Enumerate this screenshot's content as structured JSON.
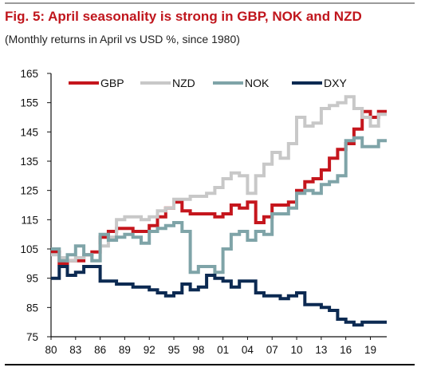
{
  "header": {
    "title": "Fig. 5: April seasonality is strong in GBP, NOK and NZD",
    "subtitle": "(Monthly returns in April vs USD %, since 1980)"
  },
  "chart_data": {
    "type": "line",
    "title": "Fig. 5: April seasonality is strong in GBP, NOK and NZD",
    "subtitle": "(Monthly returns in April vs USD %, since 1980)",
    "xlabel": "",
    "ylabel": "",
    "xlim": [
      1980,
      2021
    ],
    "ylim": [
      75,
      165
    ],
    "x_tick_values": [
      1980,
      1983,
      1986,
      1989,
      1992,
      1995,
      1998,
      2001,
      2004,
      2007,
      2010,
      2013,
      2016,
      2019
    ],
    "x_tick_labels": [
      "80",
      "83",
      "86",
      "89",
      "92",
      "95",
      "98",
      "01",
      "04",
      "07",
      "10",
      "13",
      "16",
      "19"
    ],
    "y_ticks": [
      75,
      85,
      95,
      105,
      115,
      125,
      135,
      145,
      155,
      165
    ],
    "grid": false,
    "step": true,
    "legend": "top",
    "x": [
      1980,
      1981,
      1982,
      1983,
      1984,
      1985,
      1986,
      1987,
      1988,
      1989,
      1990,
      1991,
      1992,
      1993,
      1994,
      1995,
      1996,
      1997,
      1998,
      1999,
      2000,
      2001,
      2002,
      2003,
      2004,
      2005,
      2006,
      2007,
      2008,
      2009,
      2010,
      2011,
      2012,
      2013,
      2014,
      2015,
      2016,
      2017,
      2018,
      2019,
      2020
    ],
    "series": [
      {
        "name": "GBP",
        "color": "#c5161d",
        "values": [
          104,
          100,
          101,
          101,
          103,
          104,
          109,
          111,
          112,
          112,
          111,
          111,
          113,
          116,
          119,
          121,
          118,
          117,
          117,
          117,
          116,
          117,
          120,
          119,
          121,
          114,
          116,
          120,
          120,
          121,
          125,
          128,
          129,
          132,
          136,
          139,
          141,
          146,
          152,
          150,
          152
        ]
      },
      {
        "name": "NZD",
        "color": "#c8c8c8",
        "values": [
          103,
          102,
          101,
          102,
          103,
          101,
          106,
          109,
          115,
          116,
          116,
          115,
          116,
          118,
          119,
          122,
          122,
          123,
          123,
          124,
          126,
          129,
          131,
          130,
          124,
          130,
          134,
          138,
          136,
          141,
          150,
          147,
          148,
          153,
          154,
          155,
          157,
          153,
          150,
          147,
          151
        ]
      },
      {
        "name": "NOK",
        "color": "#7fa4a8",
        "values": [
          105,
          101,
          103,
          106,
          103,
          101,
          110,
          108,
          109,
          110,
          109,
          107,
          111,
          112,
          113,
          114,
          111,
          97,
          99,
          99,
          97,
          105,
          110,
          111,
          108,
          111,
          110,
          117,
          117,
          119,
          124,
          125,
          124,
          127,
          128,
          130,
          142,
          143,
          140,
          140,
          142
        ]
      },
      {
        "name": "DXY",
        "color": "#0c2a52",
        "values": [
          95,
          99,
          96,
          97,
          99,
          99,
          94,
          94,
          93,
          93,
          92,
          92,
          91,
          90,
          89,
          90,
          93,
          91,
          92,
          96,
          95,
          94,
          92,
          94,
          94,
          90,
          89,
          89,
          88,
          89,
          90,
          86,
          86,
          85,
          84,
          81,
          80,
          79,
          80,
          80,
          80
        ]
      }
    ]
  }
}
